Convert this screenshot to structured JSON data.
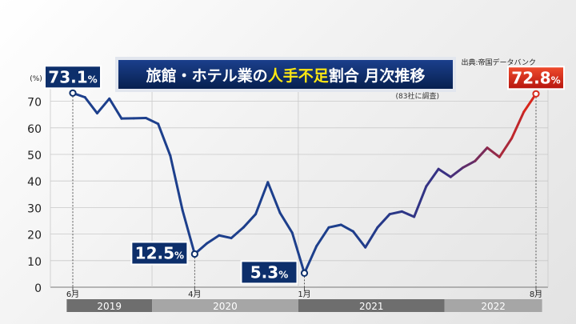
{
  "chart_data": {
    "type": "line",
    "title_prefix": "旅館・ホテル業の",
    "title_highlight": "人手不足",
    "title_suffix": "割合 月次推移",
    "subtitle": "(83社に調査)",
    "source": "出典:帝国データバンク",
    "ylabel": "(%)",
    "ylim": [
      0,
      75
    ],
    "yticks": [
      0,
      10,
      20,
      30,
      40,
      50,
      60,
      70
    ],
    "grid": true,
    "x": [
      "2019-06",
      "2019-07",
      "2019-08",
      "2019-09",
      "2019-10",
      "2019-11",
      "2019-12",
      "2020-01",
      "2020-02",
      "2020-03",
      "2020-04",
      "2020-05",
      "2020-06",
      "2020-07",
      "2020-08",
      "2020-09",
      "2020-10",
      "2020-11",
      "2020-12",
      "2021-01",
      "2021-02",
      "2021-03",
      "2021-04",
      "2021-05",
      "2021-06",
      "2021-07",
      "2021-08",
      "2021-09",
      "2021-10",
      "2021-11",
      "2021-12",
      "2022-01",
      "2022-02",
      "2022-03",
      "2022-04",
      "2022-05",
      "2022-06",
      "2022-07",
      "2022-08"
    ],
    "values": [
      73.1,
      71.5,
      65.5,
      71,
      63.5,
      63.6,
      63.7,
      61.5,
      49.5,
      29,
      12.5,
      16.5,
      19.5,
      18.5,
      22.5,
      27.5,
      39.5,
      28,
      20.5,
      5.3,
      15.5,
      22.5,
      23.5,
      21,
      15,
      22.5,
      27.5,
      28.5,
      26.5,
      38,
      44.5,
      41.5,
      45,
      47.5,
      52.5,
      49,
      56,
      66,
      72.8
    ],
    "month_labels": [
      {
        "x": "2019-06",
        "label": "6月"
      },
      {
        "x": "2020-04",
        "label": "4月"
      },
      {
        "x": "2021-01",
        "label": "1月"
      },
      {
        "x": "2022-08",
        "label": "8月"
      }
    ],
    "years": [
      {
        "label": "2019",
        "from": "2019-06",
        "to": "2019-12",
        "color": "#6e6e6e"
      },
      {
        "label": "2020",
        "from": "2020-01",
        "to": "2020-12",
        "color": "#a6a6a6"
      },
      {
        "label": "2021",
        "from": "2021-01",
        "to": "2021-12",
        "color": "#6e6e6e"
      },
      {
        "label": "2022",
        "from": "2022-01",
        "to": "2022-08",
        "color": "#a6a6a6"
      }
    ],
    "callouts": [
      {
        "x": "2019-06",
        "value": "73.1",
        "unit": "%",
        "position": "above",
        "color": "#0d2f6b"
      },
      {
        "x": "2020-04",
        "value": "12.5",
        "unit": "%",
        "position": "left",
        "color": "#0d2f6b"
      },
      {
        "x": "2021-01",
        "value": "5.3",
        "unit": "%",
        "position": "left",
        "color": "#0d2f6b"
      },
      {
        "x": "2022-08",
        "value": "72.8",
        "unit": "%",
        "position": "above",
        "color": "#d62b1c"
      }
    ],
    "line_colors": {
      "start": "#1d3f8c",
      "mid": "#3a2f82",
      "end": "#d8261c"
    }
  }
}
